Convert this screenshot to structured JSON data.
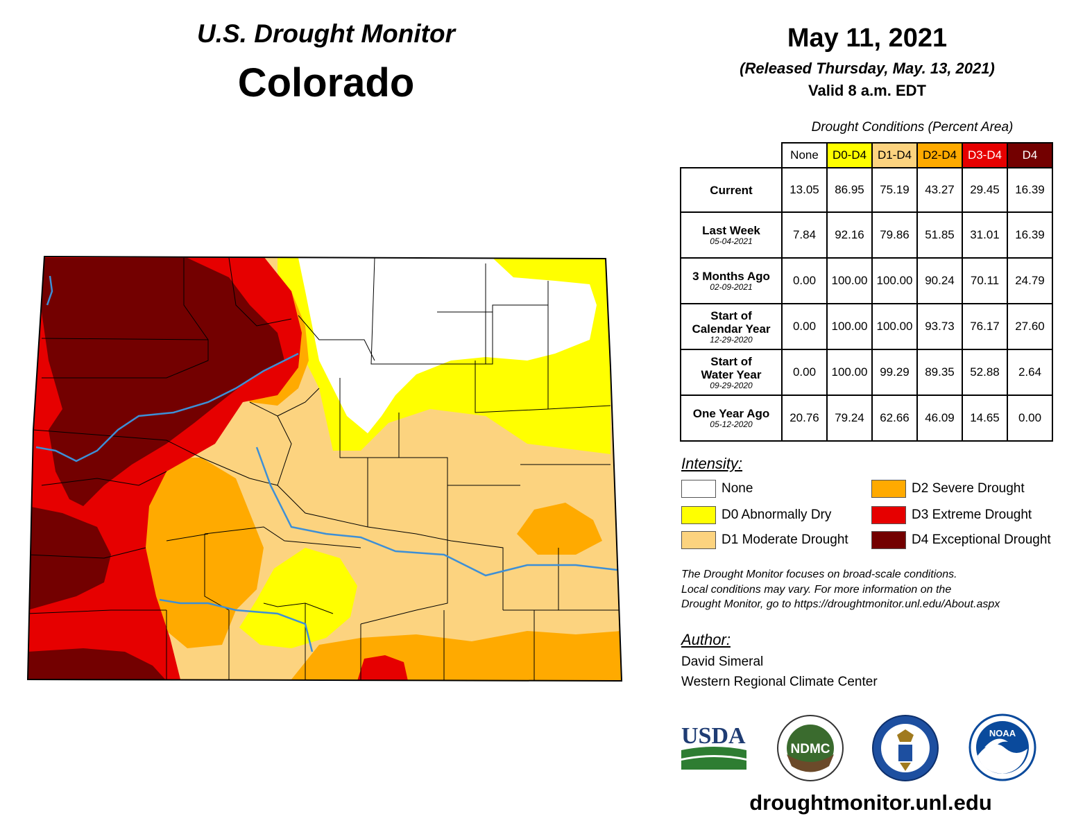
{
  "header": {
    "line1": "U.S. Drought Monitor",
    "line2": "Colorado"
  },
  "date": {
    "main": "May 11, 2021",
    "released": "(Released Thursday, May. 13, 2021)",
    "valid": "Valid 8 a.m. EDT"
  },
  "table": {
    "caption": "Drought Conditions (Percent Area)",
    "columns": [
      {
        "label": "None",
        "color": "#ffffff",
        "text_color": "#000000"
      },
      {
        "label": "D0-D4",
        "color": "#ffff00",
        "text_color": "#000000"
      },
      {
        "label": "D1-D4",
        "color": "#fcd37f",
        "text_color": "#000000"
      },
      {
        "label": "D2-D4",
        "color": "#ffaa00",
        "text_color": "#000000"
      },
      {
        "label": "D3-D4",
        "color": "#e60000",
        "text_color": "#ffffff"
      },
      {
        "label": "D4",
        "color": "#730000",
        "text_color": "#ffffff"
      }
    ],
    "rows": [
      {
        "label": "Current",
        "label2": "",
        "date": "",
        "values": [
          "13.05",
          "86.95",
          "75.19",
          "43.27",
          "29.45",
          "16.39"
        ]
      },
      {
        "label": "Last Week",
        "label2": "",
        "date": "05-04-2021",
        "values": [
          "7.84",
          "92.16",
          "79.86",
          "51.85",
          "31.01",
          "16.39"
        ]
      },
      {
        "label": "3 Months Ago",
        "label2": "",
        "date": "02-09-2021",
        "values": [
          "0.00",
          "100.00",
          "100.00",
          "90.24",
          "70.11",
          "24.79"
        ]
      },
      {
        "label": "Start of",
        "label2": "Calendar Year",
        "date": "12-29-2020",
        "values": [
          "0.00",
          "100.00",
          "100.00",
          "93.73",
          "76.17",
          "27.60"
        ]
      },
      {
        "label": "Start of",
        "label2": "Water Year",
        "date": "09-29-2020",
        "values": [
          "0.00",
          "100.00",
          "99.29",
          "89.35",
          "52.88",
          "2.64"
        ]
      },
      {
        "label": "One Year Ago",
        "label2": "",
        "date": "05-12-2020",
        "values": [
          "20.76",
          "79.24",
          "62.66",
          "46.09",
          "14.65",
          "0.00"
        ]
      }
    ]
  },
  "legend": {
    "title": "Intensity:",
    "items": [
      {
        "label": "None",
        "color": "#ffffff"
      },
      {
        "label": "D0 Abnormally Dry",
        "color": "#ffff00"
      },
      {
        "label": "D1 Moderate Drought",
        "color": "#fcd37f"
      },
      {
        "label": "D2 Severe Drought",
        "color": "#ffaa00"
      },
      {
        "label": "D3 Extreme Drought",
        "color": "#e60000"
      },
      {
        "label": "D4 Exceptional Drought",
        "color": "#730000"
      }
    ]
  },
  "note": {
    "line1": "The Drought Monitor focuses on broad-scale conditions.",
    "line2": "Local conditions may vary. For more information on the",
    "line3": "Drought Monitor, go to https://droughtmonitor.unl.edu/About.aspx"
  },
  "author": {
    "title": "Author:",
    "name": "David Simeral",
    "org": "Western Regional Climate Center"
  },
  "logos": {
    "usda": "USDA",
    "ndmc": "NDMC",
    "noaa": "NOAA"
  },
  "website": "droughtmonitor.unl.edu",
  "map": {
    "state": "Colorado",
    "river_color": "#3d8fd6",
    "border_color": "#000000"
  }
}
